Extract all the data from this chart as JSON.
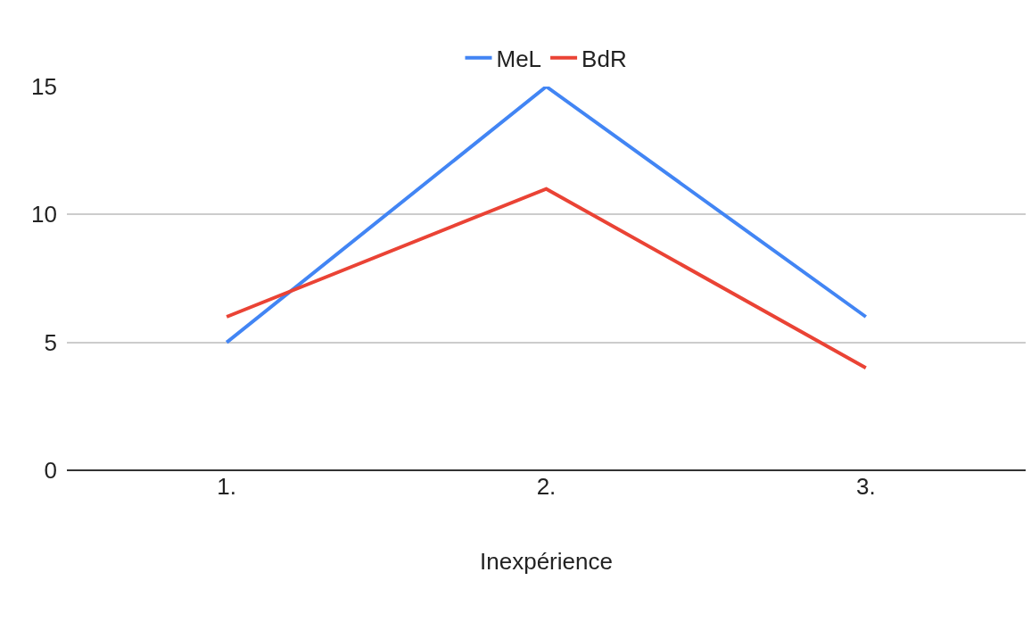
{
  "chart_data": {
    "type": "line",
    "xlabel": "Inexpérience",
    "categories": [
      "1.",
      "2.",
      "3."
    ],
    "series": [
      {
        "name": "MeL",
        "color": "#4285f4",
        "values": [
          5,
          15,
          6
        ]
      },
      {
        "name": "BdR",
        "color": "#ea4335",
        "values": [
          6,
          11,
          4
        ]
      }
    ],
    "ylim": [
      0,
      15
    ],
    "yticks": [
      0,
      5,
      10,
      15
    ],
    "grid": "y",
    "legend": "top",
    "marker": "none",
    "line_style": "solid"
  }
}
